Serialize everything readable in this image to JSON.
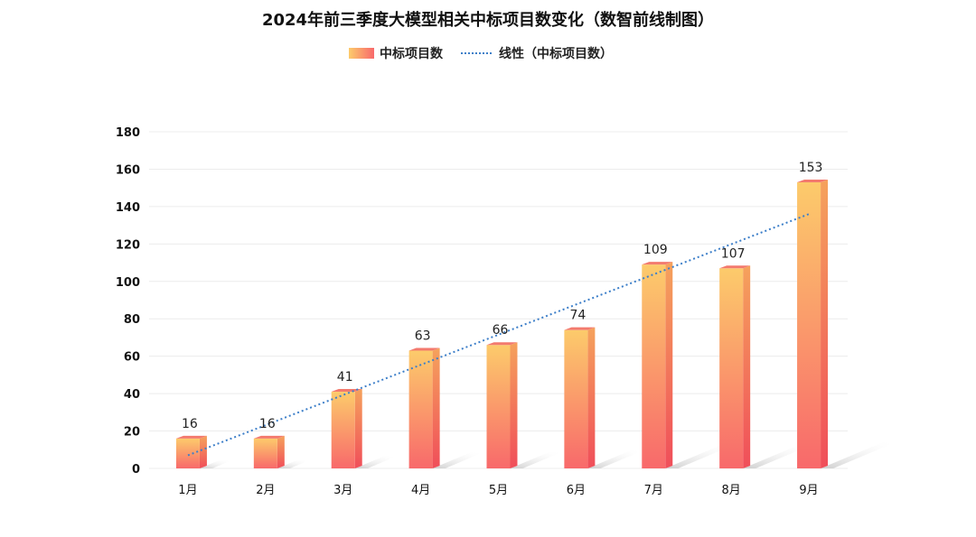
{
  "chart_data": {
    "type": "bar",
    "title": "2024年前三季度大模型相关中标项目数变化（数智前线制图）",
    "categories": [
      "1月",
      "2月",
      "3月",
      "4月",
      "5月",
      "6月",
      "7月",
      "8月",
      "9月"
    ],
    "series": [
      {
        "name": "中标项目数",
        "values": [
          16,
          16,
          41,
          63,
          66,
          74,
          109,
          107,
          153
        ]
      }
    ],
    "trendline": {
      "name": "线性（中标项目数）",
      "type": "linear",
      "start": 7,
      "end": 136
    },
    "ylim": [
      0,
      180
    ],
    "yticks": [
      0,
      20,
      40,
      60,
      80,
      100,
      120,
      140,
      160,
      180
    ],
    "xlabel": "",
    "ylabel": "",
    "grid": true,
    "legend_position": "top-center",
    "colors": {
      "bar_top": "#FCCB6B",
      "bar_bottom": "#F8696B",
      "bar_side": "#F2585E",
      "bar_cap": "#F37A6E",
      "trend": "#3D7FC9",
      "grid": "#ECECEC"
    }
  }
}
